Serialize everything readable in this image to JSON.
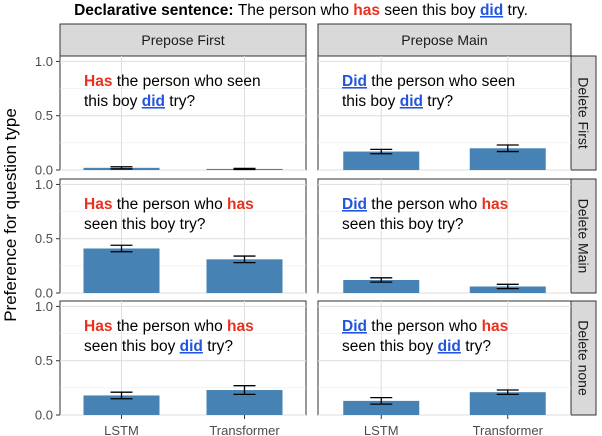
{
  "chart_data": {
    "type": "bar",
    "title_bold": "Declarative sentence:",
    "title_parts": [
      {
        "t": "The person who ",
        "s": "n"
      },
      {
        "t": "has",
        "s": "r"
      },
      {
        "t": " seen this boy ",
        "s": "n"
      },
      {
        "t": "did",
        "s": "b"
      },
      {
        "t": " try.",
        "s": "n"
      }
    ],
    "ylabel": "Preference for question type",
    "ylim": [
      0,
      1.05
    ],
    "yticks": [
      "0.0",
      "0.5",
      "1.0"
    ],
    "categories": [
      "LSTM",
      "Transformer"
    ],
    "columns": [
      "Prepose First",
      "Prepose Main"
    ],
    "rows": [
      "Delete First",
      "Delete Main",
      "Delete none"
    ],
    "bar_color": "#4682b4",
    "panels": [
      {
        "row": 0,
        "col": 0,
        "values": [
          0.02,
          0.01
        ],
        "errors": [
          0.01,
          0.005
        ],
        "annotation": [
          [
            {
              "t": "Has",
              "s": "r"
            },
            {
              "t": " the person who seen",
              "s": "n"
            }
          ],
          [
            {
              "t": "this boy ",
              "s": "n"
            },
            {
              "t": "did",
              "s": "b"
            },
            {
              "t": " try?",
              "s": "n"
            }
          ]
        ]
      },
      {
        "row": 0,
        "col": 1,
        "values": [
          0.17,
          0.2
        ],
        "errors": [
          0.02,
          0.03
        ],
        "annotation": [
          [
            {
              "t": "Did",
              "s": "b"
            },
            {
              "t": " the person who seen",
              "s": "n"
            }
          ],
          [
            {
              "t": "this boy ",
              "s": "n"
            },
            {
              "t": "did",
              "s": "b"
            },
            {
              "t": " try?",
              "s": "n"
            }
          ]
        ]
      },
      {
        "row": 1,
        "col": 0,
        "values": [
          0.41,
          0.31
        ],
        "errors": [
          0.03,
          0.03
        ],
        "annotation": [
          [
            {
              "t": "Has",
              "s": "r"
            },
            {
              "t": " the person who ",
              "s": "n"
            },
            {
              "t": "has",
              "s": "r"
            }
          ],
          [
            {
              "t": "seen this boy try?",
              "s": "n"
            }
          ]
        ]
      },
      {
        "row": 1,
        "col": 1,
        "values": [
          0.12,
          0.06
        ],
        "errors": [
          0.02,
          0.02
        ],
        "annotation": [
          [
            {
              "t": "Did",
              "s": "b"
            },
            {
              "t": " the person who ",
              "s": "n"
            },
            {
              "t": "has",
              "s": "r"
            }
          ],
          [
            {
              "t": "seen this boy try?",
              "s": "n"
            }
          ]
        ]
      },
      {
        "row": 2,
        "col": 0,
        "values": [
          0.18,
          0.23
        ],
        "errors": [
          0.03,
          0.04
        ],
        "annotation": [
          [
            {
              "t": "Has",
              "s": "r"
            },
            {
              "t": " the person who ",
              "s": "n"
            },
            {
              "t": "has",
              "s": "r"
            }
          ],
          [
            {
              "t": "seen this boy ",
              "s": "n"
            },
            {
              "t": "did",
              "s": "b"
            },
            {
              "t": " try?",
              "s": "n"
            }
          ]
        ]
      },
      {
        "row": 2,
        "col": 1,
        "values": [
          0.13,
          0.21
        ],
        "errors": [
          0.03,
          0.02
        ],
        "annotation": [
          [
            {
              "t": "Did",
              "s": "b"
            },
            {
              "t": " the person who ",
              "s": "n"
            },
            {
              "t": "has",
              "s": "r"
            }
          ],
          [
            {
              "t": "seen this boy ",
              "s": "n"
            },
            {
              "t": "did",
              "s": "b"
            },
            {
              "t": " try?",
              "s": "n"
            }
          ]
        ]
      }
    ]
  }
}
